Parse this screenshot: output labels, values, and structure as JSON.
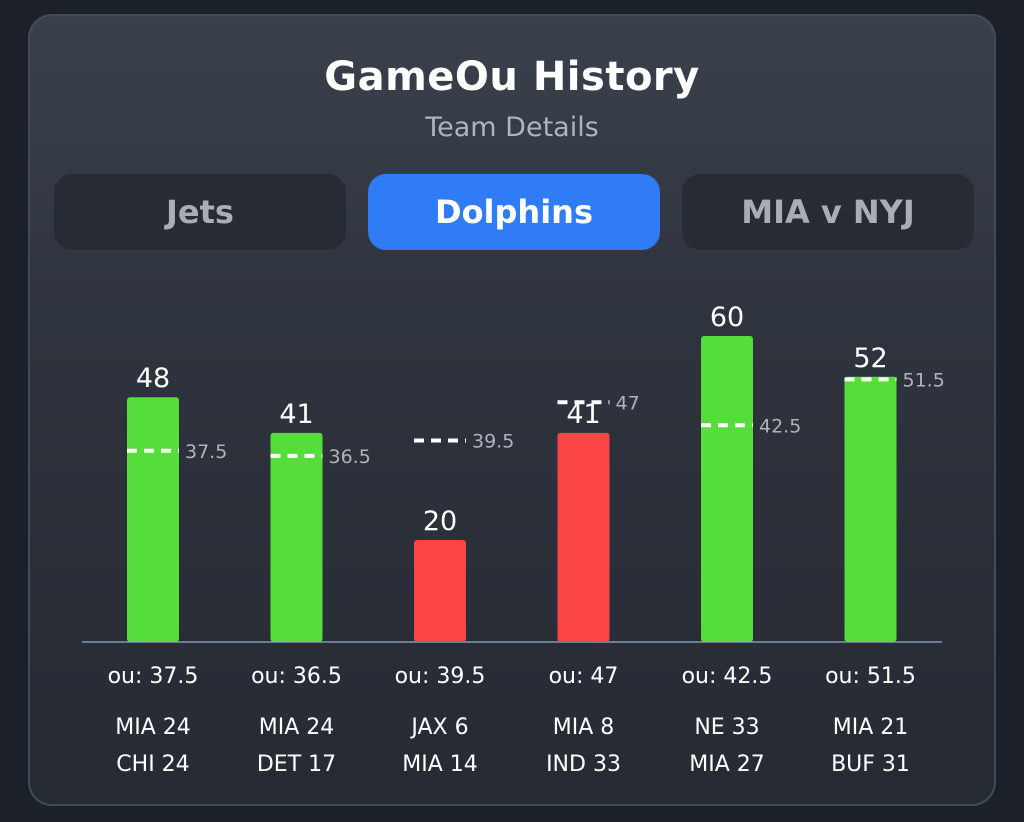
{
  "header": {
    "title": "GameOu History",
    "subtitle": "Team Details"
  },
  "tabs": [
    {
      "label": "Jets",
      "active": false
    },
    {
      "label": "Dolphins",
      "active": true
    },
    {
      "label": "MIA v NYJ",
      "active": false
    }
  ],
  "colors": {
    "over": "#55dd3c",
    "under": "#fb4545",
    "active_tab": "#2f7cf6",
    "line_label": "#aeb3bc"
  },
  "chart_data": {
    "type": "bar",
    "ylim": [
      0,
      65
    ],
    "games": [
      {
        "total": 48,
        "total_label": "48",
        "ou": 37.5,
        "ou_marker": "37.5",
        "ou_label": "ou: 37.5",
        "team1": "MIA 24",
        "team2": "CHI 24",
        "result": "over"
      },
      {
        "total": 41,
        "total_label": "41",
        "ou": 36.5,
        "ou_marker": "36.5",
        "ou_label": "ou: 36.5",
        "team1": "MIA 24",
        "team2": "DET 17",
        "result": "over"
      },
      {
        "total": 20,
        "total_label": "20",
        "ou": 39.5,
        "ou_marker": "39.5",
        "ou_label": "ou: 39.5",
        "team1": "JAX 6",
        "team2": "MIA 14",
        "result": "under"
      },
      {
        "total": 41,
        "total_label": "41",
        "ou": 47,
        "ou_marker": "47",
        "ou_label": "ou: 47",
        "team1": "MIA 8",
        "team2": "IND 33",
        "result": "under"
      },
      {
        "total": 60,
        "total_label": "60",
        "ou": 42.5,
        "ou_marker": "42.5",
        "ou_label": "ou: 42.5",
        "team1": "NE 33",
        "team2": "MIA 27",
        "result": "over"
      },
      {
        "total": 52,
        "total_label": "52",
        "ou": 51.5,
        "ou_marker": "51.5",
        "ou_label": "ou: 51.5",
        "team1": "MIA 21",
        "team2": "BUF 31",
        "result": "over"
      }
    ]
  }
}
